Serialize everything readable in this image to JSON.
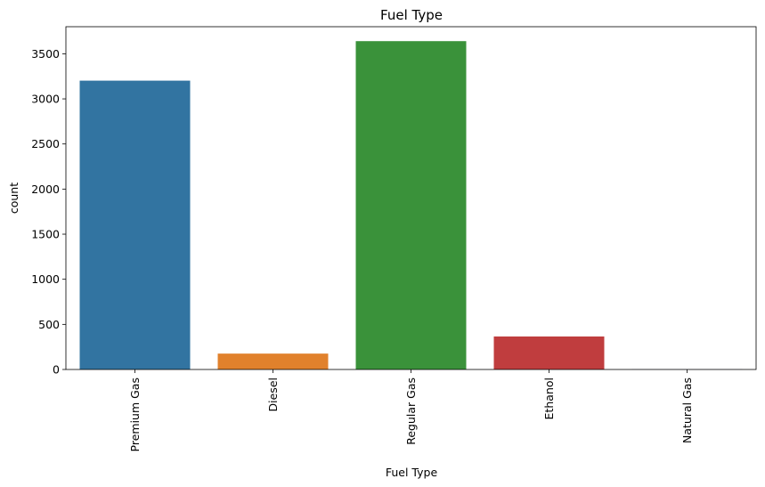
{
  "chart_data": {
    "type": "bar",
    "title": "Fuel Type",
    "xlabel": "Fuel Type",
    "ylabel": "count",
    "categories": [
      "Premium Gas",
      "Diesel",
      "Regular Gas",
      "Ethanol",
      "Natural Gas"
    ],
    "values": [
      3202,
      176,
      3640,
      366,
      2
    ],
    "colors": [
      "#3274a1",
      "#e1812c",
      "#3a923a",
      "#c03d3e",
      "#9372b2"
    ],
    "ylim": [
      0,
      3800
    ],
    "yticks": [
      0,
      500,
      1000,
      1500,
      2000,
      2500,
      3000,
      3500
    ],
    "grid": false,
    "legend": "none"
  }
}
